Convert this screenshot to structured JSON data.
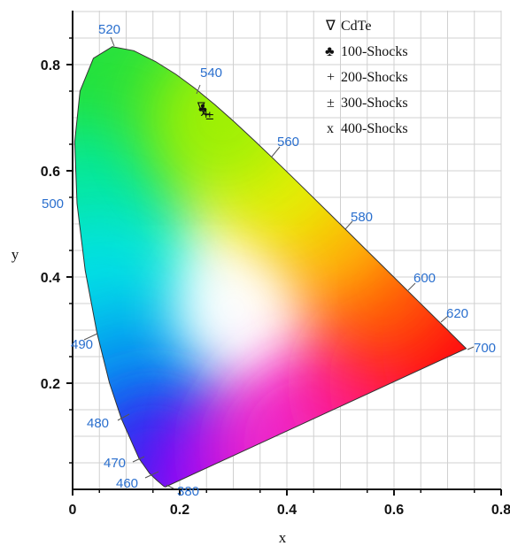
{
  "chart_data": {
    "type": "scatter",
    "xlabel": "x",
    "ylabel": "y",
    "xlim": [
      0,
      0.8
    ],
    "ylim": [
      0,
      0.85
    ],
    "x_ticks": [
      "0",
      "0.2",
      "0.4",
      "0.6",
      "0.8"
    ],
    "y_ticks": [
      "0.2",
      "0.4",
      "0.6",
      "0.8"
    ],
    "grid": true,
    "legend_position": "top-right",
    "spectral_locus_labels": [
      "460",
      "470",
      "480",
      "490",
      "500",
      "520",
      "540",
      "560",
      "580",
      "600",
      "620",
      "700",
      "380"
    ],
    "series": [
      {
        "name": "CdTe",
        "marker": "∇",
        "x": 0.24,
        "y": 0.722
      },
      {
        "name": "100-Shocks",
        "marker": "♣",
        "x": 0.243,
        "y": 0.718
      },
      {
        "name": "200-Shocks",
        "marker": "+",
        "x": 0.249,
        "y": 0.708
      },
      {
        "name": "300-Shocks",
        "marker": "±",
        "x": 0.256,
        "y": 0.705
      },
      {
        "name": "400-Shocks",
        "marker": "x",
        "x": 0.245,
        "y": 0.712
      }
    ]
  },
  "colors": {
    "axis": "#111111",
    "grid": "#d0d0d0",
    "wavelength_label": "#2a6fce"
  }
}
